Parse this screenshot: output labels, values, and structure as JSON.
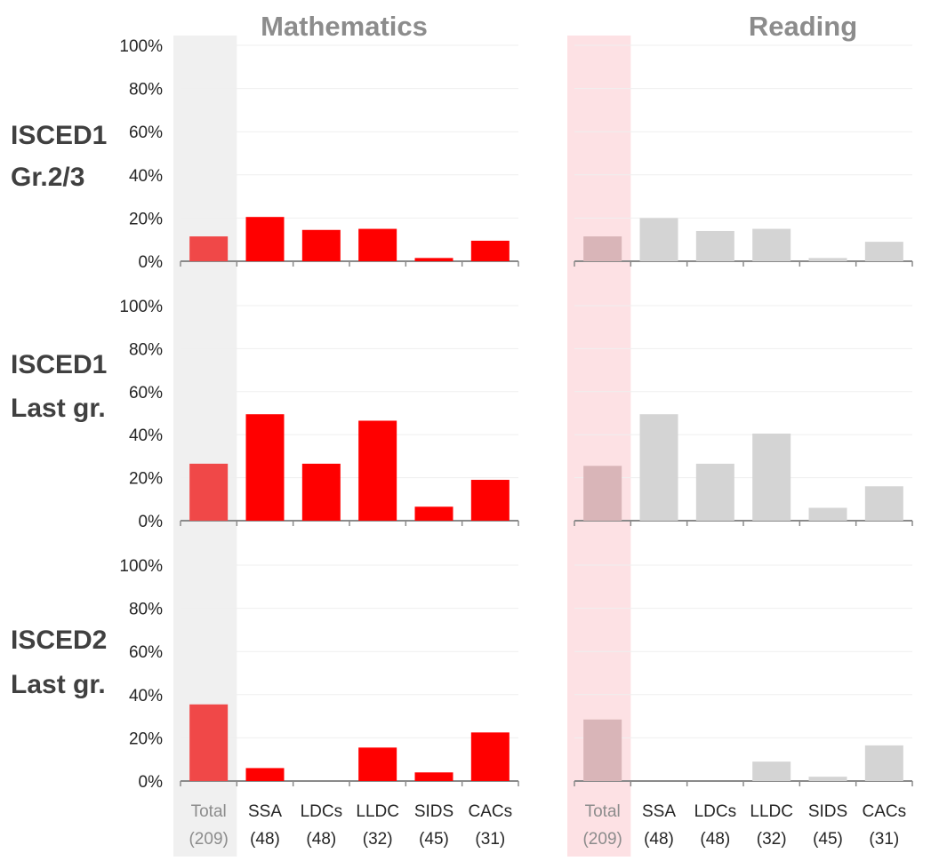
{
  "chart_data": {
    "type": "bar",
    "panels": [
      {
        "title": "Mathematics",
        "bar_color": "#ff0000",
        "total_bar_color": "#f04848",
        "highlight_color": "#f0f0f0"
      },
      {
        "title": "Reading",
        "bar_color": "#d4d4d4",
        "total_bar_color": "#d9b5b8",
        "highlight_color": "#fde1e4"
      }
    ],
    "row_labels": [
      {
        "line1": "ISCED1",
        "line2": "Gr.2/3"
      },
      {
        "line1": "ISCED1",
        "line2": "Last gr."
      },
      {
        "line1": "ISCED2",
        "line2": "Last gr."
      }
    ],
    "categories": [
      "Total",
      "SSA",
      "LDCs",
      "LLDC",
      "SIDS",
      "CACs"
    ],
    "category_counts": [
      "(209)",
      "(48)",
      "(48)",
      "(32)",
      "(45)",
      "(31)"
    ],
    "y_ticks": [
      "0%",
      "20%",
      "40%",
      "60%",
      "80%",
      "100%"
    ],
    "ylim": [
      0,
      100
    ],
    "grid": true,
    "values": {
      "Mathematics": [
        [
          11.5,
          20.5,
          14.5,
          15,
          1.5,
          9.5
        ],
        [
          26.5,
          49.5,
          26.5,
          46.5,
          6.5,
          19
        ],
        [
          35.5,
          6,
          0,
          15.5,
          4,
          22.5
        ]
      ],
      "Reading": [
        [
          11.5,
          20,
          14,
          15,
          1.5,
          9
        ],
        [
          25.5,
          49.5,
          26.5,
          40.5,
          6,
          16
        ],
        [
          28.5,
          0,
          0,
          9,
          2,
          16.5
        ]
      ]
    }
  }
}
